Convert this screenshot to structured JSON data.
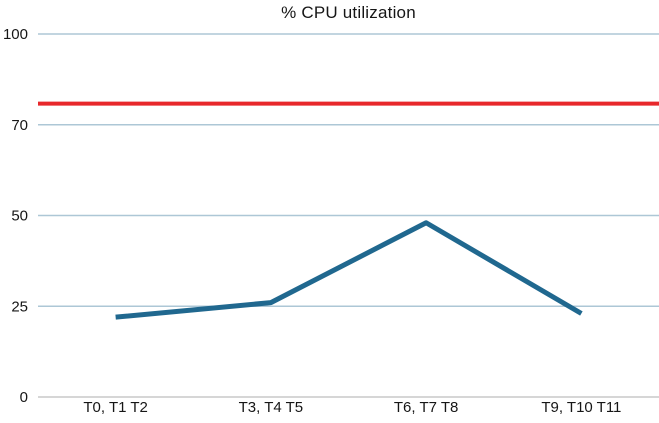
{
  "chart_data": {
    "type": "line",
    "title": "% CPU utilization",
    "categories": [
      "T0, T1 T2",
      "T3, T4 T5",
      "T6, T7 T8",
      "T9, T10 T11"
    ],
    "series": [
      {
        "name": "CPU utilization",
        "values": [
          22,
          26,
          48,
          23
        ]
      }
    ],
    "threshold_line": {
      "value": 77
    },
    "y_ticks": [
      0,
      25,
      50,
      70,
      100
    ],
    "ylim": [
      0,
      100
    ],
    "xlabel": "",
    "ylabel": "",
    "grid": true,
    "legend_position": "none"
  },
  "colors": {
    "series_line": "#20688f",
    "threshold_line": "#e8282b",
    "gridline": "#adc7d6",
    "axis_line": "#c9c9c9",
    "text": "#161616"
  }
}
